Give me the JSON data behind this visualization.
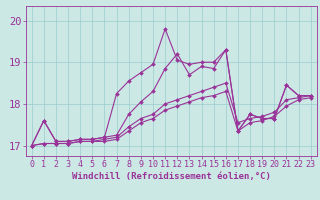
{
  "title": "",
  "xlabel": "Windchill (Refroidissement éolien,°C)",
  "background_color": "#cce8e4",
  "line_color": "#993399",
  "grid_color": "#99cccc",
  "xlim_min": -0.5,
  "xlim_max": 23.5,
  "ylim_min": 16.75,
  "ylim_max": 20.35,
  "yticks": [
    17,
    18,
    19,
    20
  ],
  "xticks": [
    0,
    1,
    2,
    3,
    4,
    5,
    6,
    7,
    8,
    9,
    10,
    11,
    12,
    13,
    14,
    15,
    16,
    17,
    18,
    19,
    20,
    21,
    22,
    23
  ],
  "series": [
    [
      17.0,
      17.6,
      17.1,
      17.1,
      17.15,
      17.15,
      17.2,
      17.25,
      17.75,
      18.05,
      18.3,
      18.85,
      19.2,
      18.7,
      18.9,
      18.85,
      19.3,
      17.35,
      17.75,
      17.65,
      17.65,
      18.45,
      18.2,
      18.2
    ],
    [
      17.0,
      17.05,
      17.05,
      17.05,
      17.1,
      17.1,
      17.1,
      17.15,
      17.35,
      17.55,
      17.65,
      17.85,
      17.95,
      18.05,
      18.15,
      18.2,
      18.3,
      17.35,
      17.55,
      17.6,
      17.7,
      17.95,
      18.1,
      18.15
    ],
    [
      17.0,
      17.05,
      17.05,
      17.05,
      17.1,
      17.1,
      17.15,
      17.2,
      17.45,
      17.65,
      17.75,
      18.0,
      18.1,
      18.2,
      18.3,
      18.4,
      18.5,
      17.55,
      17.65,
      17.7,
      17.8,
      18.1,
      18.15,
      18.2
    ],
    [
      17.0,
      17.6,
      17.1,
      17.1,
      17.15,
      17.15,
      17.2,
      18.25,
      18.55,
      18.75,
      18.95,
      19.8,
      19.05,
      18.95,
      19.0,
      19.0,
      19.3,
      17.35,
      17.75,
      17.65,
      17.65,
      18.45,
      18.2,
      18.2
    ]
  ],
  "marker": "D",
  "markersize": 2.0,
  "linewidth": 0.8,
  "xlabel_fontsize": 6.5,
  "tick_fontsize": 6.0,
  "fig_width": 3.2,
  "fig_height": 2.0,
  "dpi": 100
}
